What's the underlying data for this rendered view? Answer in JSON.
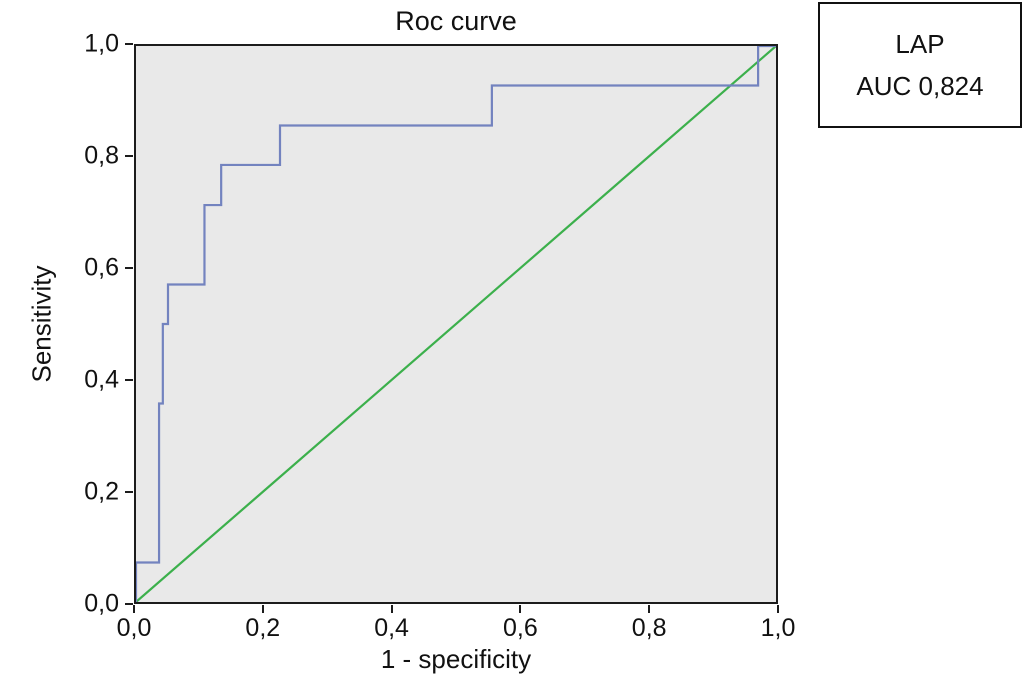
{
  "chart_data": {
    "type": "line",
    "title": "Roc curve",
    "xlabel": "1 - specificity",
    "ylabel": "Sensitivity",
    "xlim": [
      0,
      1
    ],
    "ylim": [
      0,
      1
    ],
    "grid": false,
    "plot_background": "#e9e9e9",
    "x_tick_labels": [
      "0,0",
      "0,2",
      "0,4",
      "0,6",
      "0,8",
      "1,0"
    ],
    "y_tick_labels": [
      "0,0",
      "0,2",
      "0,4",
      "0,6",
      "0,8",
      "1,0"
    ],
    "series": [
      {
        "name": "LAP ROC curve",
        "color": "#7383bf",
        "points": [
          [
            0.0,
            0.0
          ],
          [
            0.0,
            0.071
          ],
          [
            0.036,
            0.071
          ],
          [
            0.036,
            0.357
          ],
          [
            0.042,
            0.357
          ],
          [
            0.042,
            0.5
          ],
          [
            0.05,
            0.5
          ],
          [
            0.05,
            0.571
          ],
          [
            0.107,
            0.571
          ],
          [
            0.107,
            0.714
          ],
          [
            0.133,
            0.714
          ],
          [
            0.133,
            0.786
          ],
          [
            0.225,
            0.786
          ],
          [
            0.225,
            0.857
          ],
          [
            0.556,
            0.857
          ],
          [
            0.556,
            0.929
          ],
          [
            0.972,
            0.929
          ],
          [
            0.972,
            1.0
          ],
          [
            1.0,
            1.0
          ]
        ]
      }
    ],
    "reference_line": {
      "name": "chance diagonal",
      "color": "#3cb04c",
      "points": [
        [
          0,
          0
        ],
        [
          1,
          1
        ]
      ]
    },
    "legend": {
      "position": "top-right",
      "label": "LAP",
      "auc_label": "AUC 0,824"
    }
  }
}
